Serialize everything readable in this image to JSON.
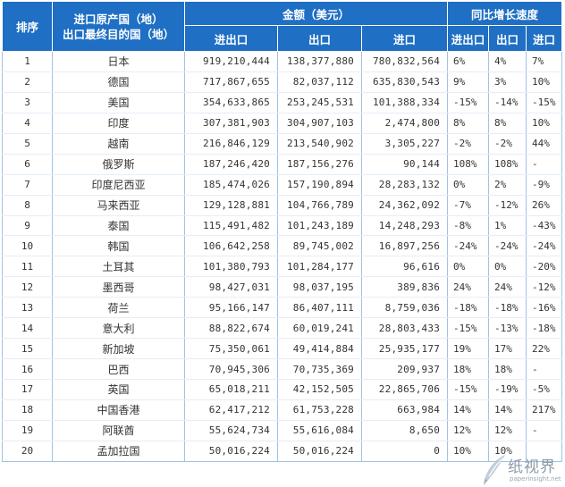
{
  "headers": {
    "rank": "排序",
    "country_line1": "进口原产国（地）",
    "country_line2": "出口最终目的国（地）",
    "amount_group": "金额（美元）",
    "growth_group": "同比增长速度",
    "amount_total": "进出口",
    "amount_export": "出口",
    "amount_import": "进口",
    "growth_total": "进出口",
    "growth_export": "出口",
    "growth_import": "进口"
  },
  "rows": [
    {
      "rank": "1",
      "country": "日本",
      "total": "919,210,444",
      "export": "138,377,880",
      "import": "780,832,564",
      "g_total": "6%",
      "g_export": "4%",
      "g_import": "7%"
    },
    {
      "rank": "2",
      "country": "德国",
      "total": "717,867,655",
      "export": "82,037,112",
      "import": "635,830,543",
      "g_total": "9%",
      "g_export": "3%",
      "g_import": "10%"
    },
    {
      "rank": "3",
      "country": "美国",
      "total": "354,633,865",
      "export": "253,245,531",
      "import": "101,388,334",
      "g_total": "-15%",
      "g_export": "-14%",
      "g_import": "-15%"
    },
    {
      "rank": "4",
      "country": "印度",
      "total": "307,381,903",
      "export": "304,907,103",
      "import": "2,474,800",
      "g_total": "8%",
      "g_export": "8%",
      "g_import": "10%"
    },
    {
      "rank": "5",
      "country": "越南",
      "total": "216,846,129",
      "export": "213,540,902",
      "import": "3,305,227",
      "g_total": "-2%",
      "g_export": "-2%",
      "g_import": "44%"
    },
    {
      "rank": "6",
      "country": "俄罗斯",
      "total": "187,246,420",
      "export": "187,156,276",
      "import": "90,144",
      "g_total": "108%",
      "g_export": "108%",
      "g_import": "-"
    },
    {
      "rank": "7",
      "country": "印度尼西亚",
      "total": "185,474,026",
      "export": "157,190,894",
      "import": "28,283,132",
      "g_total": "0%",
      "g_export": "2%",
      "g_import": "-9%"
    },
    {
      "rank": "8",
      "country": "马来西亚",
      "total": "129,128,881",
      "export": "104,766,789",
      "import": "24,362,092",
      "g_total": "-7%",
      "g_export": "-12%",
      "g_import": "26%"
    },
    {
      "rank": "9",
      "country": "泰国",
      "total": "115,491,482",
      "export": "101,243,189",
      "import": "14,248,293",
      "g_total": "-8%",
      "g_export": "1%",
      "g_import": "-43%"
    },
    {
      "rank": "10",
      "country": "韩国",
      "total": "106,642,258",
      "export": "89,745,002",
      "import": "16,897,256",
      "g_total": "-24%",
      "g_export": "-24%",
      "g_import": "-24%"
    },
    {
      "rank": "11",
      "country": "土耳其",
      "total": "101,380,793",
      "export": "101,284,177",
      "import": "96,616",
      "g_total": "0%",
      "g_export": "0%",
      "g_import": "-20%"
    },
    {
      "rank": "12",
      "country": "墨西哥",
      "total": "98,427,031",
      "export": "98,037,195",
      "import": "389,836",
      "g_total": "24%",
      "g_export": "24%",
      "g_import": "-12%"
    },
    {
      "rank": "13",
      "country": "荷兰",
      "total": "95,166,147",
      "export": "86,407,111",
      "import": "8,759,036",
      "g_total": "-18%",
      "g_export": "-18%",
      "g_import": "-16%"
    },
    {
      "rank": "14",
      "country": "意大利",
      "total": "88,822,674",
      "export": "60,019,241",
      "import": "28,803,433",
      "g_total": "-15%",
      "g_export": "-13%",
      "g_import": "-18%"
    },
    {
      "rank": "15",
      "country": "新加坡",
      "total": "75,350,061",
      "export": "49,414,884",
      "import": "25,935,177",
      "g_total": "19%",
      "g_export": "17%",
      "g_import": "22%"
    },
    {
      "rank": "16",
      "country": "巴西",
      "total": "70,945,306",
      "export": "70,735,369",
      "import": "209,937",
      "g_total": "18%",
      "g_export": "18%",
      "g_import": "-"
    },
    {
      "rank": "17",
      "country": "英国",
      "total": "65,018,211",
      "export": "42,152,505",
      "import": "22,865,706",
      "g_total": "-15%",
      "g_export": "-19%",
      "g_import": "-5%"
    },
    {
      "rank": "18",
      "country": "中国香港",
      "total": "62,417,212",
      "export": "61,753,228",
      "import": "663,984",
      "g_total": "14%",
      "g_export": "14%",
      "g_import": "217%"
    },
    {
      "rank": "19",
      "country": "阿联酋",
      "total": "55,624,734",
      "export": "55,616,084",
      "import": "8,650",
      "g_total": "12%",
      "g_export": "12%",
      "g_import": "-"
    },
    {
      "rank": "20",
      "country": "孟加拉国",
      "total": "50,016,224",
      "export": "50,016,224",
      "import": "0",
      "g_total": "10%",
      "g_export": "10%",
      "g_import": ""
    }
  ],
  "watermark": {
    "text": "纸视界",
    "url": "paperinsight.net",
    "icon": "pen-logo-icon"
  }
}
